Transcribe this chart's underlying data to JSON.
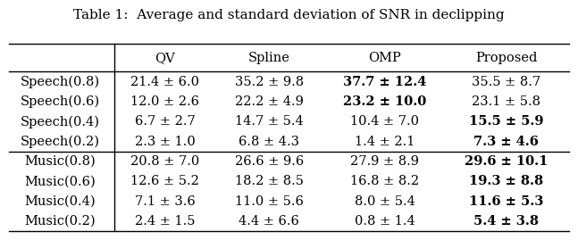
{
  "title": "Table 1:  Average and standard deviation of SNR in declipping",
  "col_headers": [
    "QV",
    "Spline",
    "OMP",
    "Proposed"
  ],
  "row_labels": [
    "Speech(0.8)",
    "Speech(0.6)",
    "Speech(0.4)",
    "Speech(0.2)",
    "Music(0.8)",
    "Music(0.6)",
    "Music(0.4)",
    "Music(0.2)"
  ],
  "cells": [
    [
      "21.4 ± 6.0",
      "35.2 ± 9.8",
      "37.7 ± 12.4",
      "35.5 ± 8.7"
    ],
    [
      "12.0 ± 2.6",
      "22.2 ± 4.9",
      "23.2 ± 10.0",
      "23.1 ± 5.8"
    ],
    [
      "6.7 ± 2.7",
      "14.7 ± 5.4",
      "10.4 ± 7.0",
      "15.5 ± 5.9"
    ],
    [
      "2.3 ± 1.0",
      "6.8 ± 4.3",
      "1.4 ± 2.1",
      "7.3 ± 4.6"
    ],
    [
      "20.8 ± 7.0",
      "26.6 ± 9.6",
      "27.9 ± 8.9",
      "29.6 ± 10.1"
    ],
    [
      "12.6 ± 5.2",
      "18.2 ± 8.5",
      "16.8 ± 8.2",
      "19.3 ± 8.8"
    ],
    [
      "7.1 ± 3.6",
      "11.0 ± 5.6",
      "8.0 ± 5.4",
      "11.6 ± 5.3"
    ],
    [
      "2.4 ± 1.5",
      "4.4 ± 6.6",
      "0.8 ± 1.4",
      "5.4 ± 3.8"
    ]
  ],
  "bold_cells": {
    "0,2": true,
    "1,2": true,
    "2,3": true,
    "3,3": true,
    "4,3": true,
    "5,3": true,
    "6,3": true,
    "7,3": true
  },
  "separator_after_row": 3,
  "bg_color": "white",
  "font_size": 10.5,
  "header_font_size": 10.5,
  "title_font_size": 11
}
